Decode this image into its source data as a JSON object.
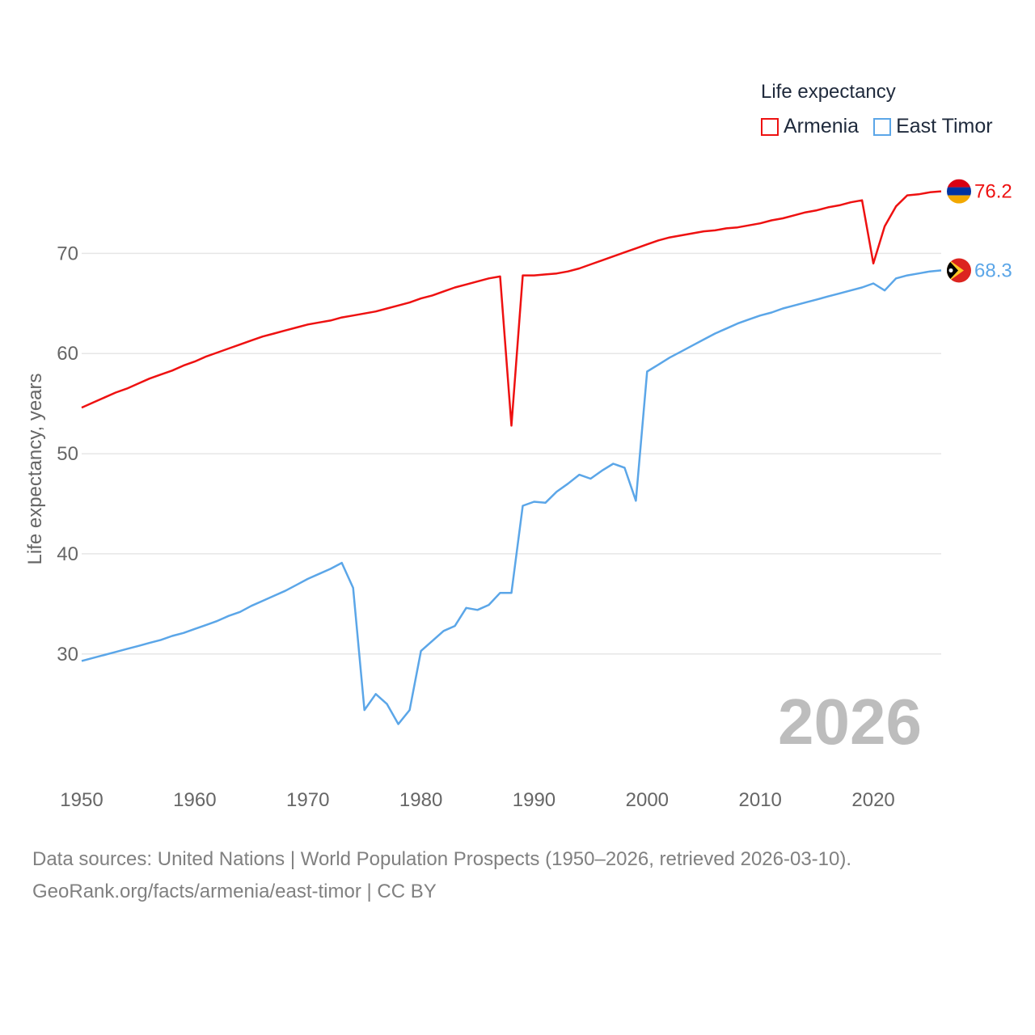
{
  "legend": {
    "title": "Life expectancy",
    "items": [
      {
        "label": "Armenia",
        "color": "#ee1111"
      },
      {
        "label": "East Timor",
        "color": "#5ba6e8"
      }
    ]
  },
  "footer": {
    "sources": "Data sources: United Nations | World Population Prospects (1950–2026, retrieved 2026-03-10).",
    "credit": "GeoRank.org/facts/armenia/east-timor | CC BY"
  },
  "chart_data": {
    "type": "line",
    "title": "Life expectancy",
    "ylabel": "Life expectancy, years",
    "xlabel": "",
    "xlim": [
      1950,
      2026
    ],
    "ylim": [
      19,
      84
    ],
    "yticks": [
      30,
      40,
      50,
      60,
      70
    ],
    "xticks": [
      1950,
      1960,
      1970,
      1980,
      1990,
      2000,
      2010,
      2020
    ],
    "year_watermark": "2026",
    "x": [
      1950,
      1951,
      1952,
      1953,
      1954,
      1955,
      1956,
      1957,
      1958,
      1959,
      1960,
      1961,
      1962,
      1963,
      1964,
      1965,
      1966,
      1967,
      1968,
      1969,
      1970,
      1971,
      1972,
      1973,
      1974,
      1975,
      1976,
      1977,
      1978,
      1979,
      1980,
      1981,
      1982,
      1983,
      1984,
      1985,
      1986,
      1987,
      1988,
      1989,
      1990,
      1991,
      1992,
      1993,
      1994,
      1995,
      1996,
      1997,
      1998,
      1999,
      2000,
      2001,
      2002,
      2003,
      2004,
      2005,
      2006,
      2007,
      2008,
      2009,
      2010,
      2011,
      2012,
      2013,
      2014,
      2015,
      2016,
      2017,
      2018,
      2019,
      2020,
      2021,
      2022,
      2023,
      2024,
      2025,
      2026
    ],
    "series": [
      {
        "name": "Armenia",
        "color": "#ee1111",
        "end_label": "76.2",
        "flag": "armenia-flag",
        "values": [
          54.6,
          55.1,
          55.6,
          56.1,
          56.5,
          57.0,
          57.5,
          57.9,
          58.3,
          58.8,
          59.2,
          59.7,
          60.1,
          60.5,
          60.9,
          61.3,
          61.7,
          62.0,
          62.3,
          62.6,
          62.9,
          63.1,
          63.3,
          63.6,
          63.8,
          64.0,
          64.2,
          64.5,
          64.8,
          65.1,
          65.5,
          65.8,
          66.2,
          66.6,
          66.9,
          67.2,
          67.5,
          67.7,
          52.8,
          67.8,
          67.8,
          67.9,
          68.0,
          68.2,
          68.5,
          68.9,
          69.3,
          69.7,
          70.1,
          70.5,
          70.9,
          71.3,
          71.6,
          71.8,
          72.0,
          72.2,
          72.3,
          72.5,
          72.6,
          72.8,
          73.0,
          73.3,
          73.5,
          73.8,
          74.1,
          74.3,
          74.6,
          74.8,
          75.1,
          75.3,
          69.0,
          72.7,
          74.7,
          75.8,
          75.9,
          76.1,
          76.2
        ]
      },
      {
        "name": "East Timor",
        "color": "#5ba6e8",
        "end_label": "68.3",
        "flag": "east-timor-flag",
        "values": [
          29.3,
          29.6,
          29.9,
          30.2,
          30.5,
          30.8,
          31.1,
          31.4,
          31.8,
          32.1,
          32.5,
          32.9,
          33.3,
          33.8,
          34.2,
          34.8,
          35.3,
          35.8,
          36.3,
          36.9,
          37.5,
          38.0,
          38.5,
          39.1,
          36.6,
          24.4,
          26.0,
          25.0,
          23.0,
          24.4,
          30.3,
          31.3,
          32.3,
          32.8,
          34.6,
          34.4,
          34.9,
          36.1,
          36.1,
          44.8,
          45.2,
          45.1,
          46.2,
          47.0,
          47.9,
          47.5,
          48.3,
          49.0,
          48.6,
          45.3,
          58.2,
          58.9,
          59.6,
          60.2,
          60.8,
          61.4,
          62.0,
          62.5,
          63.0,
          63.4,
          63.8,
          64.1,
          64.5,
          64.8,
          65.1,
          65.4,
          65.7,
          66.0,
          66.3,
          66.6,
          67.0,
          66.3,
          67.5,
          67.8,
          68.0,
          68.2,
          68.3
        ]
      }
    ]
  }
}
